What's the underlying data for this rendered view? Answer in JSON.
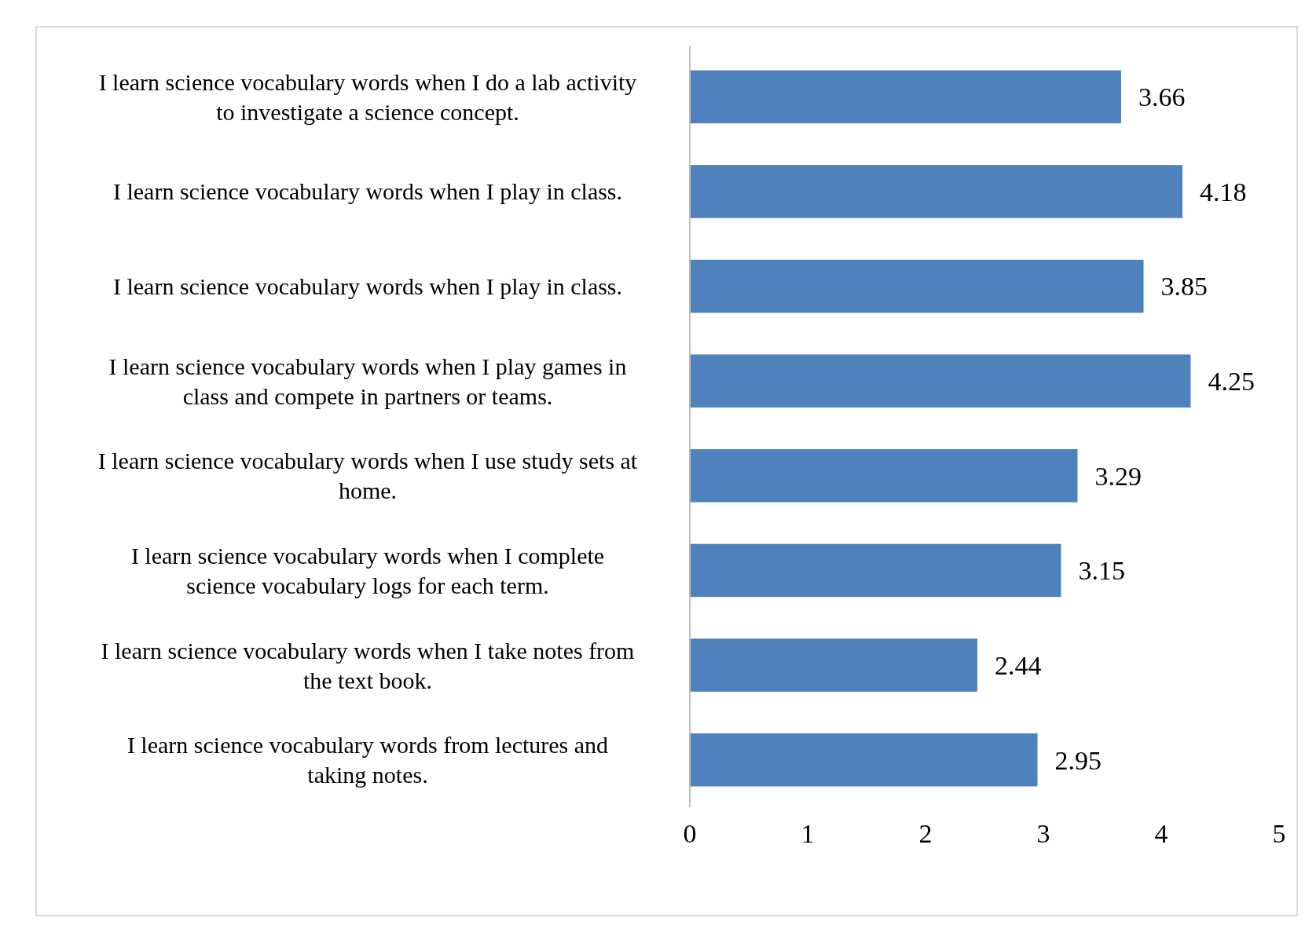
{
  "chart_data": {
    "type": "bar",
    "orientation": "horizontal",
    "categories": [
      "I learn science vocabulary words when I do a lab activity to investigate a science concept.",
      "I learn science vocabulary words when I play in class.",
      "I learn science vocabulary words when I play in class.",
      "I learn science vocabulary words when I play games in class and compete in partners or teams.",
      "I learn science vocabulary words when I use study sets at home.",
      "I learn science vocabulary words when I complete science vocabulary logs for each term.",
      "I learn science vocabulary words when I take notes from the text book.",
      "I learn science vocabulary words from lectures and taking notes."
    ],
    "values": [
      3.66,
      4.18,
      3.85,
      4.25,
      3.29,
      3.15,
      2.44,
      2.95
    ],
    "color": "#4f81bd",
    "xlim": [
      0,
      5
    ],
    "xticks": [
      0,
      1,
      2,
      3,
      4,
      5
    ],
    "data_labels": true,
    "grid": false
  }
}
